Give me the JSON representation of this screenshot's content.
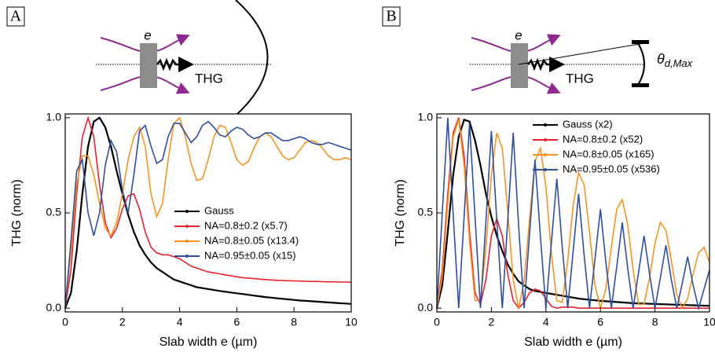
{
  "chart_data": [
    {
      "type": "line",
      "panel": "A",
      "diagram_labels": {
        "slab": "e",
        "signal": "THG"
      },
      "xlabel": "Slab width e (µm)",
      "ylabel": "THG (norm)",
      "xlim": [
        0,
        10
      ],
      "ylim": [
        -0.02,
        1.02
      ],
      "xticks": [
        0,
        2,
        4,
        6,
        8,
        10
      ],
      "yticks": [
        {
          "value": 0,
          "label": "0.0"
        },
        0.5,
        {
          "value": 1,
          "label": "1.0"
        }
      ],
      "legend": "center right",
      "x": [
        0,
        0.2,
        0.4,
        0.6,
        0.8,
        1,
        1.2,
        1.4,
        1.6,
        1.8,
        2,
        2.2,
        2.4,
        2.6,
        2.8,
        3,
        3.2,
        3.4,
        3.6,
        3.8,
        4,
        4.2,
        4.4,
        4.6,
        4.8,
        5,
        5.2,
        5.4,
        5.6,
        5.8,
        6,
        6.2,
        6.4,
        6.6,
        6.8,
        7,
        7.2,
        7.4,
        7.6,
        7.8,
        8,
        8.2,
        8.4,
        8.6,
        8.8,
        9,
        9.2,
        9.4,
        9.6,
        9.8,
        10
      ],
      "series": [
        {
          "name": "Gauss",
          "color": "#000000",
          "values": [
            0,
            0.08,
            0.3,
            0.6,
            0.85,
            0.98,
            1,
            0.95,
            0.85,
            0.72,
            0.6,
            0.49,
            0.4,
            0.33,
            0.28,
            0.24,
            0.21,
            0.19,
            0.17,
            0.15,
            0.14,
            0.13,
            0.12,
            0.11,
            0.105,
            0.1,
            0.095,
            0.09,
            0.086,
            0.082,
            0.078,
            0.074,
            0.07,
            0.066,
            0.062,
            0.058,
            0.055,
            0.052,
            0.049,
            0.046,
            0.043,
            0.04,
            0.038,
            0.036,
            0.034,
            0.032,
            0.03,
            0.028,
            0.026,
            0.024,
            0.022
          ]
        },
        {
          "name": "NA=0.8±0.2 (x5.7)",
          "color": "#e8212b",
          "values": [
            0,
            0.2,
            0.6,
            0.9,
            1,
            0.9,
            0.65,
            0.45,
            0.37,
            0.42,
            0.52,
            0.59,
            0.6,
            0.52,
            0.4,
            0.32,
            0.29,
            0.28,
            0.28,
            0.27,
            0.26,
            0.24,
            0.22,
            0.21,
            0.2,
            0.19,
            0.185,
            0.18,
            0.175,
            0.17,
            0.165,
            0.16,
            0.158,
            0.155,
            0.152,
            0.15,
            0.148,
            0.146,
            0.145,
            0.144,
            0.143,
            0.142,
            0.141,
            0.14,
            0.14,
            0.139,
            0.138,
            0.138,
            0.137,
            0.137,
            0.136
          ]
        },
        {
          "name": "NA=0.8±0.05 (x13.4)",
          "color": "#f7931e",
          "values": [
            0,
            0.3,
            0.65,
            0.8,
            0.8,
            0.7,
            0.55,
            0.42,
            0.38,
            0.45,
            0.6,
            0.78,
            0.9,
            0.95,
            0.85,
            0.6,
            0.48,
            0.55,
            0.78,
            0.97,
            1,
            0.9,
            0.76,
            0.67,
            0.68,
            0.78,
            0.9,
            0.96,
            0.95,
            0.87,
            0.78,
            0.75,
            0.77,
            0.84,
            0.9,
            0.92,
            0.9,
            0.85,
            0.8,
            0.78,
            0.79,
            0.83,
            0.87,
            0.88,
            0.87,
            0.84,
            0.8,
            0.78,
            0.78,
            0.79,
            0.78
          ]
        },
        {
          "name": "NA=0.95±0.05 (x15)",
          "color": "#2e4f9f",
          "values": [
            0,
            0.35,
            0.72,
            0.78,
            0.5,
            0.38,
            0.5,
            0.75,
            0.88,
            0.82,
            0.62,
            0.5,
            0.7,
            0.93,
            0.96,
            0.85,
            0.76,
            0.78,
            0.9,
            0.97,
            0.97,
            0.92,
            0.87,
            0.9,
            0.96,
            0.98,
            0.95,
            0.91,
            0.9,
            0.93,
            0.95,
            0.94,
            0.91,
            0.89,
            0.9,
            0.92,
            0.92,
            0.9,
            0.88,
            0.88,
            0.89,
            0.9,
            0.89,
            0.87,
            0.86,
            0.86,
            0.87,
            0.86,
            0.85,
            0.84,
            0.83
          ]
        }
      ]
    },
    {
      "type": "line",
      "panel": "B",
      "diagram_labels": {
        "slab": "e",
        "signal": "THG"
      },
      "detector_label": {
        "symbol": "θ",
        "subscript": "d,Max"
      },
      "xlabel": "Slab width e (µm)",
      "ylabel": "THG (norm)",
      "xlim": [
        0,
        10
      ],
      "ylim": [
        -0.02,
        1.02
      ],
      "xticks": [
        0,
        2,
        4,
        6,
        8,
        10
      ],
      "yticks": [
        {
          "value": 0,
          "label": "0.0"
        },
        0.5,
        {
          "value": 1,
          "label": "1.0"
        }
      ],
      "legend": "upper right",
      "x": [
        0,
        0.2,
        0.4,
        0.6,
        0.8,
        1,
        1.2,
        1.4,
        1.6,
        1.8,
        2,
        2.2,
        2.4,
        2.6,
        2.8,
        3,
        3.2,
        3.4,
        3.6,
        3.8,
        4,
        4.2,
        4.4,
        4.6,
        4.8,
        5,
        5.2,
        5.4,
        5.6,
        5.8,
        6,
        6.2,
        6.4,
        6.6,
        6.8,
        7,
        7.2,
        7.4,
        7.6,
        7.8,
        8,
        8.2,
        8.4,
        8.6,
        8.8,
        9,
        9.2,
        9.4,
        9.6,
        9.8,
        10
      ],
      "series": [
        {
          "name": "Gauss (x2)",
          "color": "#000000",
          "values": [
            0,
            0.12,
            0.4,
            0.7,
            0.9,
            0.99,
            0.98,
            0.88,
            0.75,
            0.6,
            0.48,
            0.38,
            0.3,
            0.23,
            0.18,
            0.14,
            0.12,
            0.1,
            0.09,
            0.085,
            0.08,
            0.075,
            0.07,
            0.065,
            0.06,
            0.055,
            0.05,
            0.047,
            0.044,
            0.041,
            0.038,
            0.036,
            0.034,
            0.032,
            0.03,
            0.028,
            0.026,
            0.025,
            0.024,
            0.023,
            0.022,
            0.021,
            0.02,
            0.019,
            0.018,
            0.017,
            0.016,
            0.015,
            0.014,
            0.013,
            0.012
          ]
        },
        {
          "name": "NA=0.8±0.2 (x52)",
          "color": "#e8212b",
          "values": [
            0,
            0.2,
            0.6,
            0.92,
            1,
            0.8,
            0.4,
            0.08,
            0.02,
            0.15,
            0.38,
            0.47,
            0.38,
            0.18,
            0.04,
            0,
            0.03,
            0.08,
            0.1,
            0.09,
            0.05,
            0.01,
            0,
            0.005,
            0.005,
            0.005,
            0,
            0,
            0,
            0,
            0,
            0,
            0,
            0,
            0,
            0,
            0,
            0,
            0,
            0,
            0,
            0,
            0,
            0,
            0,
            0,
            0,
            0,
            0,
            0,
            0
          ]
        },
        {
          "name": "NA=0.8±0.05 (x165)",
          "color": "#f7931e",
          "values": [
            0,
            0.165,
            0.55,
            0.9,
            0.99,
            0.75,
            0.35,
            0.04,
            0.04,
            0.32,
            0.7,
            0.92,
            0.84,
            0.51,
            0.15,
            0,
            0.14,
            0.47,
            0.77,
            0.84,
            0.64,
            0.29,
            0.04,
            0.03,
            0.25,
            0.54,
            0.71,
            0.65,
            0.4,
            0.12,
            0,
            0.1,
            0.32,
            0.52,
            0.57,
            0.44,
            0.2,
            0.02,
            0.02,
            0.16,
            0.34,
            0.45,
            0.41,
            0.25,
            0.07,
            0,
            0.05,
            0.18,
            0.29,
            0.32,
            0.24
          ]
        },
        {
          "name": "NA=0.95±0.05 (x536)",
          "color": "#2e4f9f",
          "values": [
            0,
            0.5,
            1,
            0.49,
            0,
            0.48,
            0.97,
            0.48,
            0,
            0.46,
            0.93,
            0.46,
            0,
            0.46,
            0.92,
            0.43,
            0,
            0.39,
            0.78,
            0.37,
            0,
            0.34,
            0.68,
            0.32,
            0,
            0.3,
            0.6,
            0.28,
            0,
            0.26,
            0.52,
            0.24,
            0,
            0.22,
            0.45,
            0.21,
            0,
            0.19,
            0.38,
            0.18,
            0,
            0.16,
            0.33,
            0.15,
            0,
            0.13,
            0.27,
            0.12,
            0,
            0.1,
            0.2
          ]
        }
      ]
    }
  ]
}
